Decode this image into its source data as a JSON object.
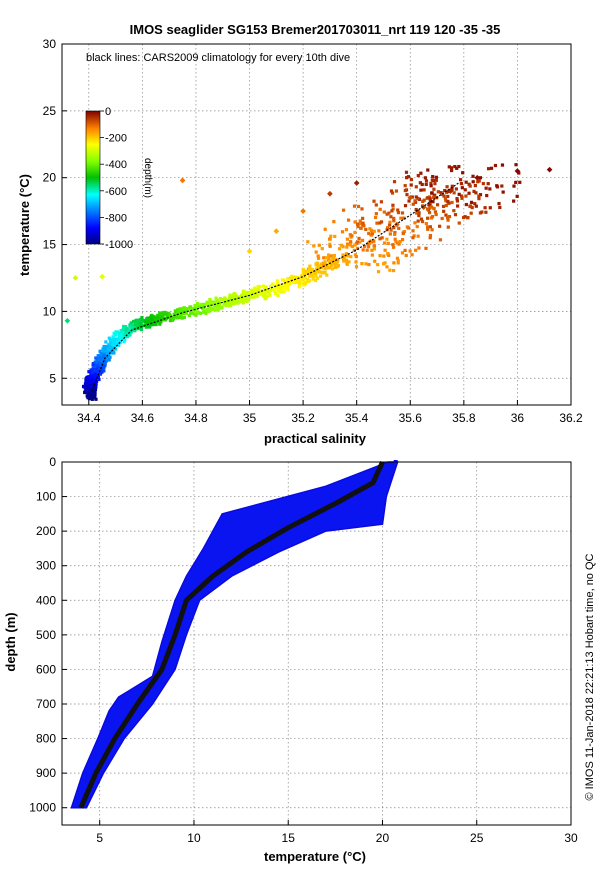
{
  "title": "IMOS seaglider SG153 Bremer201703011_nrt 119  120  -35  -35",
  "side_note": "© IMOS 11-Jan-2018 22:21:13 Hobart time, no QC",
  "chart_data": [
    {
      "type": "scatter",
      "annotation": "black lines: CARS2009 climatology for every 10th dive",
      "xlabel": "practical salinity",
      "ylabel": "temperature (°C)",
      "xlim": [
        34.3,
        36.2
      ],
      "ylim": [
        3,
        30
      ],
      "xticks": [
        "34.4",
        "34.6",
        "34.8",
        "35",
        "35.2",
        "35.4",
        "35.6",
        "35.8",
        "36",
        "36.2"
      ],
      "yticks": [
        "5",
        "10",
        "15",
        "20",
        "25",
        "30"
      ],
      "grid": true,
      "colorbar": {
        "label": "depth(m)",
        "range": [
          -1000,
          0
        ],
        "ticks": [
          "0",
          "-200",
          "-400",
          "-600",
          "-800",
          "-1000"
        ]
      },
      "series": [
        {
          "color_by_depth": true,
          "points": [
            {
              "salinity": 34.41,
              "temperature": 3.7,
              "depth": -1000
            },
            {
              "salinity": 34.4,
              "temperature": 4.2,
              "depth": -950
            },
            {
              "salinity": 34.41,
              "temperature": 4.8,
              "depth": -900
            },
            {
              "salinity": 34.43,
              "temperature": 5.6,
              "depth": -830
            },
            {
              "salinity": 34.45,
              "temperature": 6.4,
              "depth": -760
            },
            {
              "salinity": 34.48,
              "temperature": 7.3,
              "depth": -690
            },
            {
              "salinity": 34.52,
              "temperature": 8.2,
              "depth": -620
            },
            {
              "salinity": 34.58,
              "temperature": 9.0,
              "depth": -540
            },
            {
              "salinity": 34.65,
              "temperature": 9.4,
              "depth": -480
            },
            {
              "salinity": 34.75,
              "temperature": 9.9,
              "depth": -420
            },
            {
              "salinity": 34.85,
              "temperature": 10.4,
              "depth": -370
            },
            {
              "salinity": 34.95,
              "temperature": 10.9,
              "depth": -320
            },
            {
              "salinity": 35.05,
              "temperature": 11.4,
              "depth": -280
            },
            {
              "salinity": 35.15,
              "temperature": 12.1,
              "depth": -240
            },
            {
              "salinity": 35.25,
              "temperature": 13.0,
              "depth": -200
            },
            {
              "salinity": 35.35,
              "temperature": 14.0,
              "depth": -165
            },
            {
              "salinity": 35.45,
              "temperature": 15.2,
              "depth": -130
            },
            {
              "salinity": 35.55,
              "temperature": 16.5,
              "depth": -100
            },
            {
              "salinity": 35.65,
              "temperature": 17.8,
              "depth": -70
            },
            {
              "salinity": 35.75,
              "temperature": 19.0,
              "depth": -40
            },
            {
              "salinity": 35.85,
              "temperature": 20.0,
              "depth": -10
            },
            {
              "salinity": 35.2,
              "temperature": 17.5,
              "depth": -120
            },
            {
              "salinity": 35.3,
              "temperature": 18.8,
              "depth": -60
            },
            {
              "salinity": 35.4,
              "temperature": 19.6,
              "depth": -30
            },
            {
              "salinity": 35.1,
              "temperature": 16.0,
              "depth": -170
            },
            {
              "salinity": 35.0,
              "temperature": 14.5,
              "depth": -210
            },
            {
              "salinity": 35.6,
              "temperature": 18.5,
              "depth": -80
            },
            {
              "salinity": 34.75,
              "temperature": 19.8,
              "depth": -120
            },
            {
              "salinity": 36.0,
              "temperature": 20.5,
              "depth": -5
            },
            {
              "salinity": 36.12,
              "temperature": 20.6,
              "depth": -5
            },
            {
              "salinity": 34.35,
              "temperature": 12.5,
              "depth": -300
            },
            {
              "salinity": 34.45,
              "temperature": 12.6,
              "depth": -280
            },
            {
              "salinity": 34.32,
              "temperature": 9.3,
              "depth": -560
            }
          ]
        }
      ],
      "climatology_line": [
        {
          "salinity": 34.41,
          "temperature": 4.0
        },
        {
          "salinity": 34.46,
          "temperature": 6.5
        },
        {
          "salinity": 34.56,
          "temperature": 8.6
        },
        {
          "salinity": 34.75,
          "temperature": 9.9
        },
        {
          "salinity": 35.0,
          "temperature": 11.2
        },
        {
          "salinity": 35.2,
          "temperature": 12.6
        },
        {
          "salinity": 35.4,
          "temperature": 14.6
        },
        {
          "salinity": 35.6,
          "temperature": 17.2
        },
        {
          "salinity": 35.78,
          "temperature": 19.6
        }
      ]
    },
    {
      "type": "scatter",
      "xlabel": "temperature (°C)",
      "ylabel": "depth (m)",
      "xlim": [
        3,
        30
      ],
      "ylim": [
        0,
        1050
      ],
      "y_reversed": true,
      "xticks": [
        "5",
        "10",
        "15",
        "20",
        "25",
        "30"
      ],
      "yticks": [
        "0",
        "100",
        "200",
        "300",
        "400",
        "500",
        "600",
        "700",
        "800",
        "900",
        "1000"
      ],
      "grid": true,
      "series": [
        {
          "color": "#0a14f0",
          "profile_center": [
            {
              "temperature": 20.0,
              "depth": 0
            },
            {
              "temperature": 19.5,
              "depth": 60
            },
            {
              "temperature": 17.5,
              "depth": 120
            },
            {
              "temperature": 15.0,
              "depth": 190
            },
            {
              "temperature": 12.8,
              "depth": 260
            },
            {
              "temperature": 11.0,
              "depth": 330
            },
            {
              "temperature": 9.6,
              "depth": 400
            },
            {
              "temperature": 9.0,
              "depth": 500
            },
            {
              "temperature": 8.3,
              "depth": 600
            },
            {
              "temperature": 7.0,
              "depth": 700
            },
            {
              "temperature": 5.8,
              "depth": 800
            },
            {
              "temperature": 4.8,
              "depth": 900
            },
            {
              "temperature": 4.0,
              "depth": 1000
            }
          ],
          "profile_left_edge": [
            {
              "temperature": 20.3,
              "depth": 0
            },
            {
              "temperature": 17.0,
              "depth": 70
            },
            {
              "temperature": 11.5,
              "depth": 150
            },
            {
              "temperature": 10.5,
              "depth": 250
            },
            {
              "temperature": 9.6,
              "depth": 330
            },
            {
              "temperature": 9.0,
              "depth": 400
            },
            {
              "temperature": 8.3,
              "depth": 520
            },
            {
              "temperature": 7.8,
              "depth": 620
            },
            {
              "temperature": 6.0,
              "depth": 680
            },
            {
              "temperature": 5.5,
              "depth": 720
            },
            {
              "temperature": 4.9,
              "depth": 800
            },
            {
              "temperature": 4.1,
              "depth": 900
            },
            {
              "temperature": 3.5,
              "depth": 1000
            }
          ],
          "profile_right_edge": [
            {
              "temperature": 20.8,
              "depth": 0
            },
            {
              "temperature": 20.2,
              "depth": 100
            },
            {
              "temperature": 20.0,
              "depth": 180
            },
            {
              "temperature": 17.0,
              "depth": 200
            },
            {
              "temperature": 14.5,
              "depth": 260
            },
            {
              "temperature": 12.0,
              "depth": 330
            },
            {
              "temperature": 10.3,
              "depth": 400
            },
            {
              "temperature": 9.6,
              "depth": 500
            },
            {
              "temperature": 9.0,
              "depth": 600
            },
            {
              "temperature": 7.8,
              "depth": 700
            },
            {
              "temperature": 6.3,
              "depth": 800
            },
            {
              "temperature": 5.2,
              "depth": 900
            },
            {
              "temperature": 4.3,
              "depth": 1000
            }
          ],
          "outliers": [
            {
              "temperature": 9.2,
              "depth": 480
            },
            {
              "temperature": 20.7,
              "depth": 0
            }
          ]
        }
      ]
    }
  ]
}
